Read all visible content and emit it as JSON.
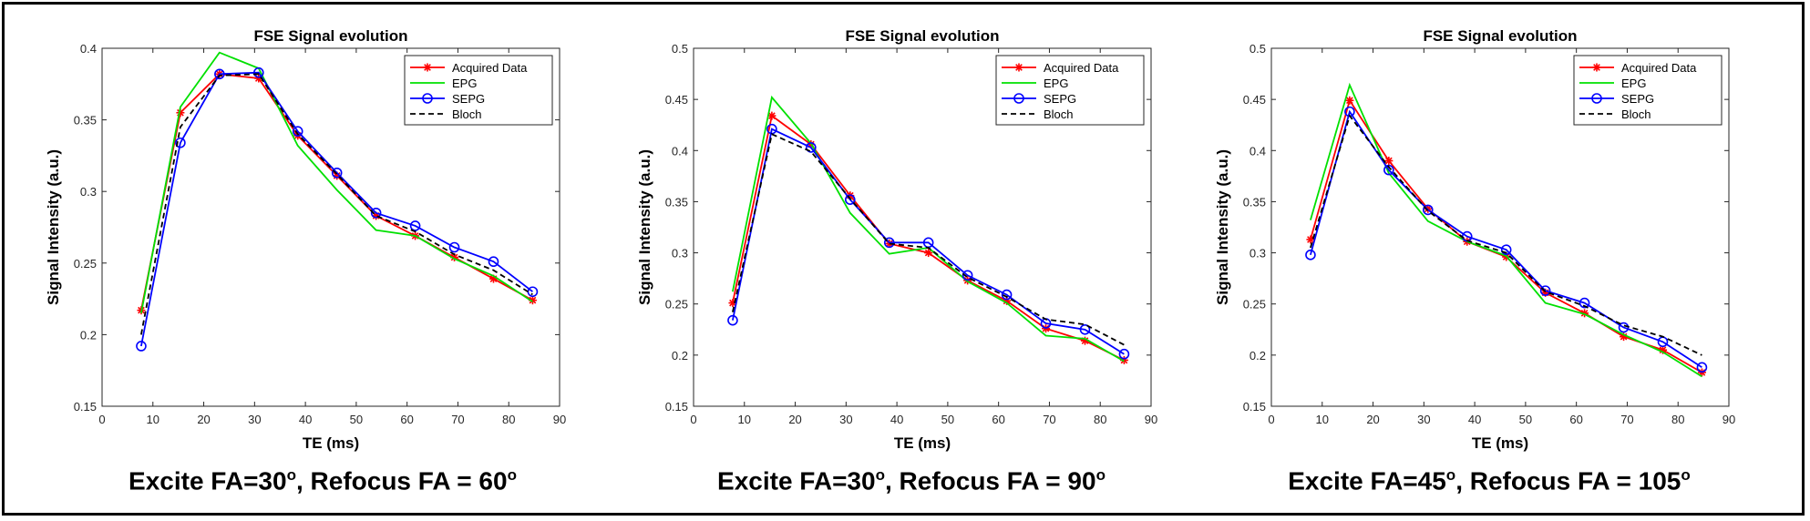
{
  "chart_data": [
    {
      "type": "line",
      "title": "FSE Signal evolution",
      "xlabel": "TE (ms)",
      "ylabel": "Signal Intensity (a.u.)",
      "xlim": [
        0,
        90
      ],
      "ylim": [
        0.15,
        0.4
      ],
      "xticks": [
        "0",
        "10",
        "20",
        "30",
        "40",
        "50",
        "60",
        "70",
        "80",
        "90"
      ],
      "yticks": [
        "0.15",
        "0.2",
        "0.25",
        "0.3",
        "0.35",
        "0.4"
      ],
      "legend_position": "top-right",
      "x": [
        7.7,
        15.4,
        23.1,
        30.8,
        38.5,
        46.2,
        53.9,
        61.6,
        69.3,
        77.0,
        84.7
      ],
      "series": [
        {
          "name": "Acquired Data",
          "color": "#ff0000",
          "marker": "asterisk",
          "values": [
            0.217,
            0.355,
            0.382,
            0.379,
            0.339,
            0.311,
            0.283,
            0.269,
            0.254,
            0.239,
            0.224
          ]
        },
        {
          "name": "EPG",
          "color": "#00e000",
          "marker": "none",
          "values": [
            0.215,
            0.359,
            0.397,
            0.386,
            0.332,
            0.301,
            0.273,
            0.269,
            0.253,
            0.241,
            0.223
          ]
        },
        {
          "name": "SEPG",
          "color": "#0000ff",
          "marker": "circle",
          "values": [
            0.192,
            0.334,
            0.382,
            0.383,
            0.342,
            0.313,
            0.285,
            0.276,
            0.261,
            0.251,
            0.23
          ]
        },
        {
          "name": "Bloch",
          "color": "#000000",
          "marker": "none",
          "dashed": true,
          "values": [
            0.2,
            0.345,
            0.381,
            0.382,
            0.34,
            0.312,
            0.283,
            0.272,
            0.256,
            0.245,
            0.228
          ]
        }
      ],
      "caption": {
        "prefix": "Excite FA=30",
        "sup1": "o",
        "middle": ", Refocus FA = 60",
        "sup2": "o"
      }
    },
    {
      "type": "line",
      "title": "FSE Signal evolution",
      "xlabel": "TE (ms)",
      "ylabel": "Signal Intensity (a.u.)",
      "xlim": [
        0,
        90
      ],
      "ylim": [
        0.15,
        0.5
      ],
      "xticks": [
        "0",
        "10",
        "20",
        "30",
        "40",
        "50",
        "60",
        "70",
        "80",
        "90"
      ],
      "yticks": [
        "0.15",
        "0.2",
        "0.25",
        "0.3",
        "0.35",
        "0.4",
        "0.45",
        "0.5"
      ],
      "legend_position": "top-right",
      "x": [
        7.7,
        15.4,
        23.1,
        30.8,
        38.5,
        46.2,
        53.9,
        61.6,
        69.3,
        77.0,
        84.7
      ],
      "series": [
        {
          "name": "Acquired Data",
          "color": "#ff0000",
          "marker": "asterisk",
          "values": [
            0.251,
            0.434,
            0.406,
            0.356,
            0.309,
            0.3,
            0.273,
            0.253,
            0.226,
            0.214,
            0.195
          ]
        },
        {
          "name": "EPG",
          "color": "#00e000",
          "marker": "none",
          "values": [
            0.262,
            0.452,
            0.407,
            0.339,
            0.299,
            0.305,
            0.272,
            0.251,
            0.219,
            0.216,
            0.194
          ]
        },
        {
          "name": "SEPG",
          "color": "#0000ff",
          "marker": "circle",
          "values": [
            0.234,
            0.421,
            0.403,
            0.352,
            0.31,
            0.31,
            0.278,
            0.259,
            0.231,
            0.225,
            0.201
          ]
        },
        {
          "name": "Bloch",
          "color": "#000000",
          "marker": "none",
          "dashed": true,
          "values": [
            0.242,
            0.416,
            0.399,
            0.353,
            0.309,
            0.305,
            0.276,
            0.257,
            0.235,
            0.23,
            0.21
          ]
        }
      ],
      "caption": {
        "prefix": "Excite FA=30",
        "sup1": "o",
        "middle": ", Refocus FA = 90",
        "sup2": "o"
      }
    },
    {
      "type": "line",
      "title": "FSE Signal evolution",
      "xlabel": "TE (ms)",
      "ylabel": "Signal Intensity (a.u.)",
      "xlim": [
        0,
        90
      ],
      "ylim": [
        0.15,
        0.5
      ],
      "xticks": [
        "0",
        "10",
        "20",
        "30",
        "40",
        "50",
        "60",
        "70",
        "80",
        "90"
      ],
      "yticks": [
        "0.15",
        "0.2",
        "0.25",
        "0.3",
        "0.35",
        "0.4",
        "0.45",
        "0.5"
      ],
      "legend_position": "top-right",
      "x": [
        7.7,
        15.4,
        23.1,
        30.8,
        38.5,
        46.2,
        53.9,
        61.6,
        69.3,
        77.0,
        84.7
      ],
      "series": [
        {
          "name": "Acquired Data",
          "color": "#ff0000",
          "marker": "asterisk",
          "values": [
            0.313,
            0.449,
            0.39,
            0.343,
            0.311,
            0.296,
            0.261,
            0.241,
            0.218,
            0.205,
            0.183
          ]
        },
        {
          "name": "EPG",
          "color": "#00e000",
          "marker": "none",
          "values": [
            0.332,
            0.464,
            0.378,
            0.331,
            0.311,
            0.297,
            0.251,
            0.24,
            0.22,
            0.203,
            0.179
          ]
        },
        {
          "name": "SEPG",
          "color": "#0000ff",
          "marker": "circle",
          "values": [
            0.298,
            0.438,
            0.381,
            0.342,
            0.316,
            0.303,
            0.263,
            0.251,
            0.227,
            0.213,
            0.188
          ]
        },
        {
          "name": "Bloch",
          "color": "#000000",
          "marker": "none",
          "dashed": true,
          "values": [
            0.305,
            0.434,
            0.384,
            0.341,
            0.312,
            0.3,
            0.262,
            0.248,
            0.229,
            0.218,
            0.2
          ]
        }
      ],
      "caption": {
        "prefix": "Excite FA=45",
        "sup1": "o",
        "middle": ", Refocus FA = 105",
        "sup2": "o"
      }
    }
  ]
}
